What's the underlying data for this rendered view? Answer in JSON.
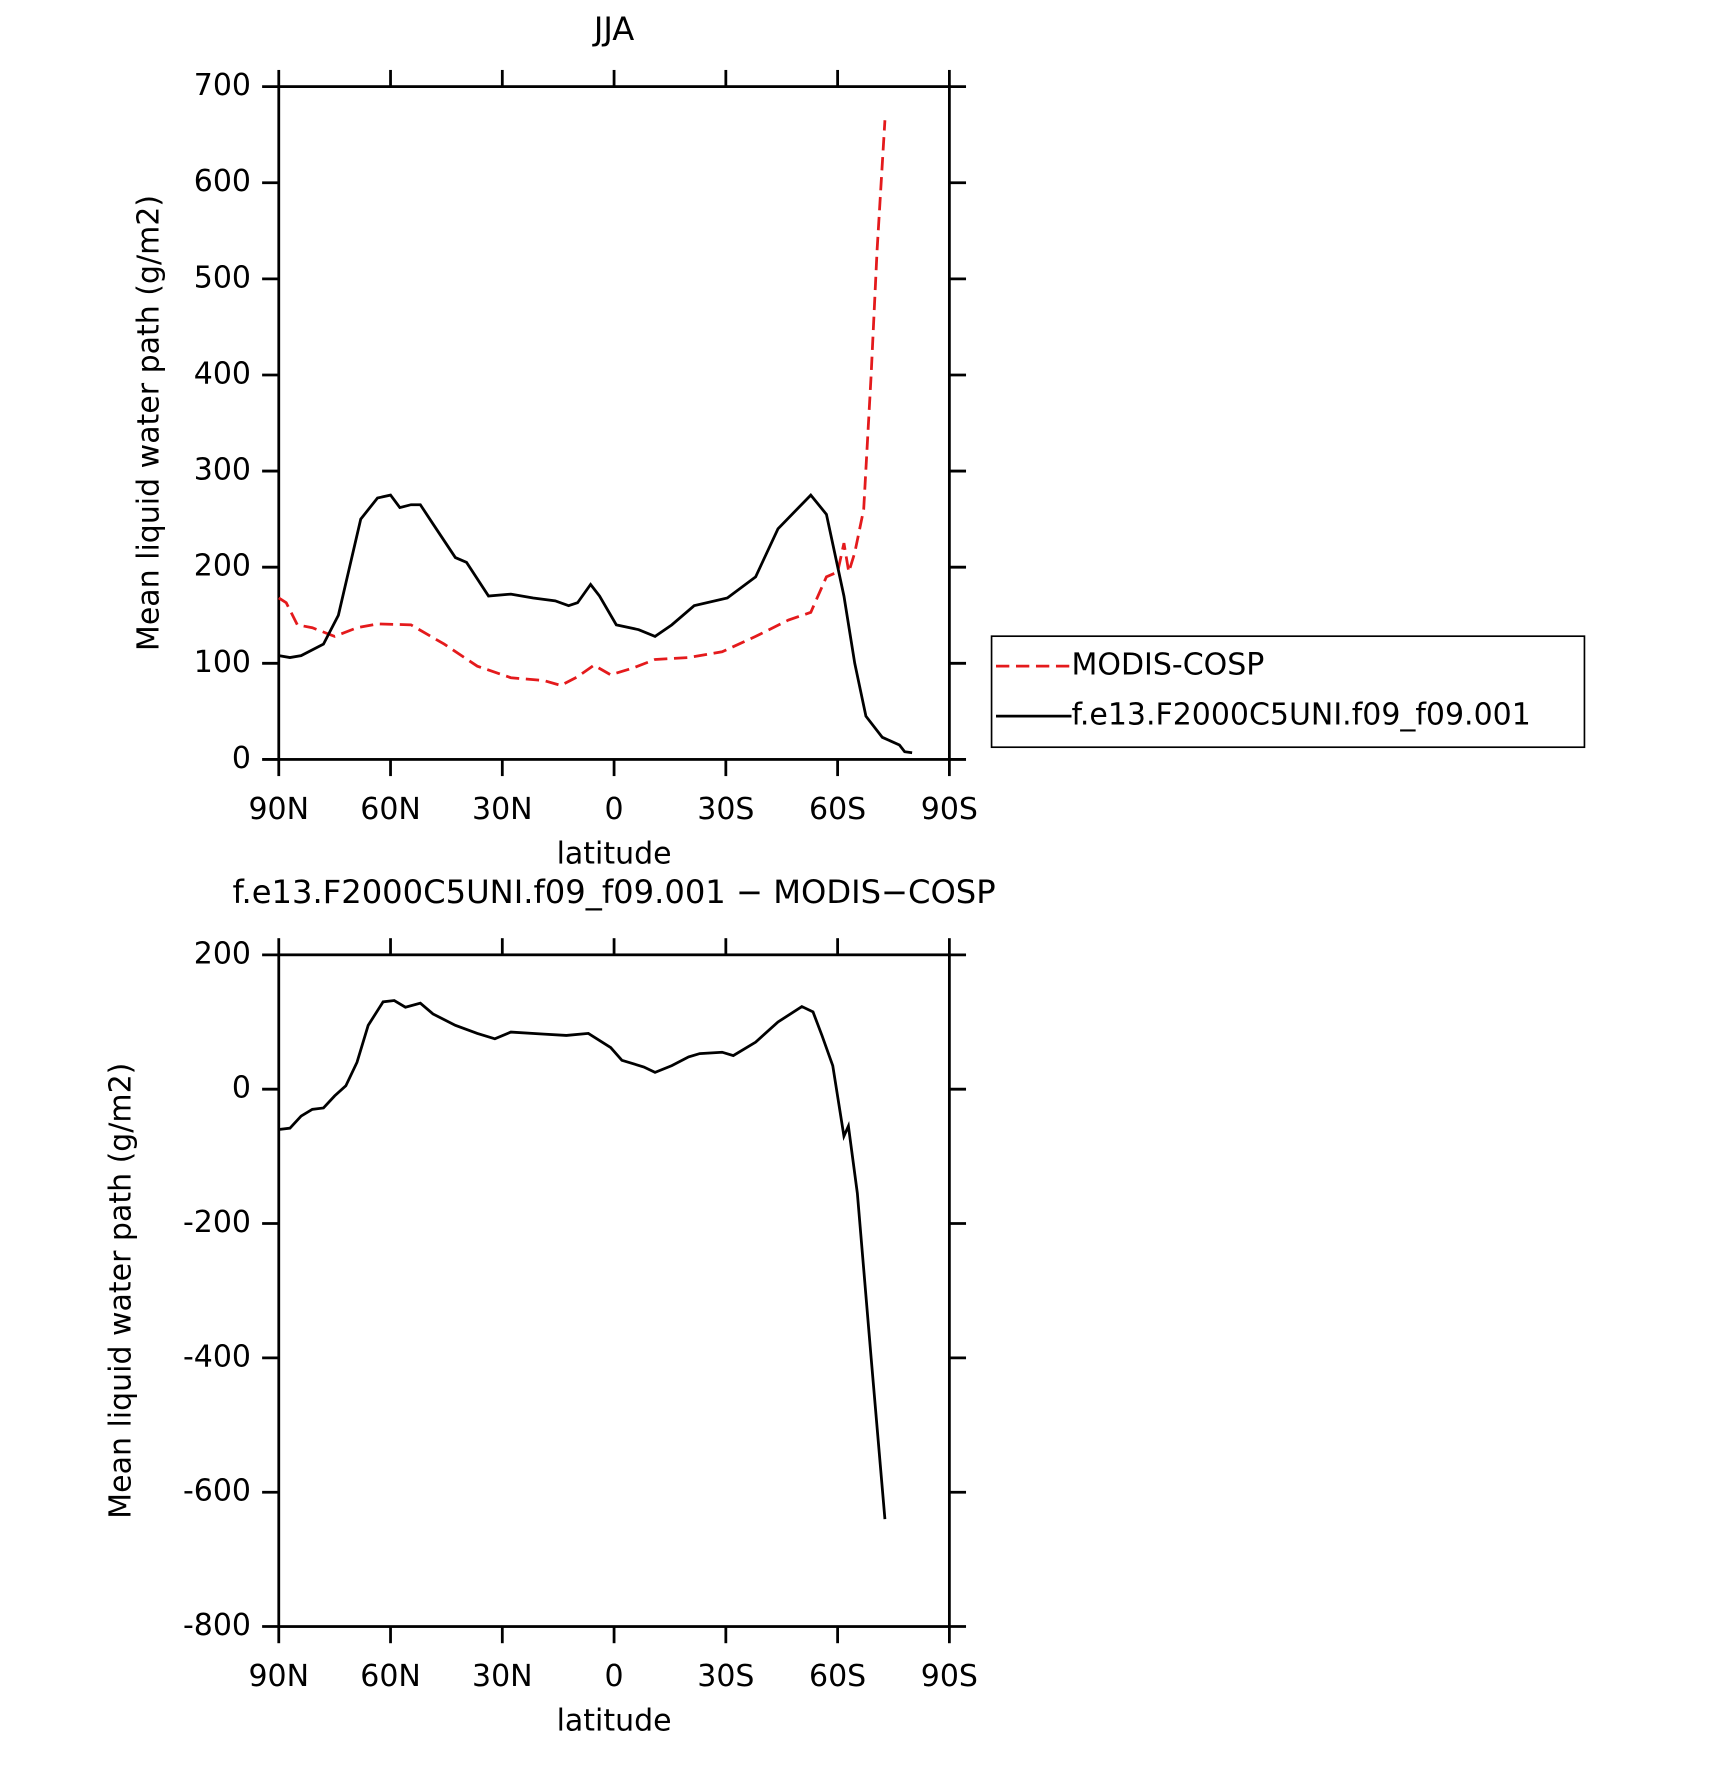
{
  "chart_data": [
    {
      "type": "line",
      "title": "JJA",
      "x_label": "latitude",
      "y_label": "Mean liquid water path (g/m2)",
      "xlim": [
        90,
        -90
      ],
      "xticks": [
        {
          "value": 90,
          "label": "90N"
        },
        {
          "value": 60,
          "label": "60N"
        },
        {
          "value": 30,
          "label": "30N"
        },
        0,
        {
          "value": -30,
          "label": "30S"
        },
        {
          "value": -60,
          "label": "60S"
        },
        {
          "value": -90,
          "label": "90S"
        }
      ],
      "ylim": [
        0,
        700
      ],
      "yticks": [
        0,
        100,
        200,
        300,
        400,
        500,
        600,
        700
      ],
      "legend": "right",
      "series": [
        {
          "name": "MODIS-COSP",
          "color": "#e41a1c",
          "dash": true,
          "x": [
            90,
            88,
            85,
            81,
            75,
            69,
            63.5,
            54.5,
            45.6,
            36.7,
            27.7,
            18.8,
            14.3,
            9.8,
            5.4,
            0.9,
            -5,
            -11,
            -20,
            -29,
            -38,
            -46.8,
            -52.8,
            -57,
            -60,
            -61.7,
            -63,
            -64.6,
            -67,
            -69,
            -70.6,
            -72.7
          ],
          "values": [
            168,
            163,
            140,
            137,
            128,
            137,
            141,
            140,
            120,
            97,
            85,
            82,
            77,
            86,
            98,
            88,
            95,
            104,
            106,
            112,
            128,
            145,
            153,
            190,
            195,
            225,
            195,
            215,
            260,
            400,
            530,
            665
          ]
        },
        {
          "name": "f.e13.F2000C5UNI.f09_f09.001",
          "color": "#000000",
          "dash": false,
          "x": [
            90,
            87,
            84,
            78,
            74,
            71,
            68,
            63.5,
            60,
            57.5,
            54.5,
            52,
            48.6,
            42.6,
            39.6,
            33.7,
            27.7,
            21.7,
            15.8,
            12.2,
            9.8,
            6.3,
            3.9,
            -0.6,
            -6.6,
            -11,
            -15.5,
            -21.5,
            -30.4,
            -38,
            -44,
            -52.8,
            -57,
            -61.7,
            -64.6,
            -67.6,
            -72,
            -76.6,
            -78,
            -80
          ],
          "values": [
            108,
            106,
            108,
            120,
            150,
            200,
            250,
            272,
            275,
            262,
            265,
            265,
            245,
            210,
            205,
            170,
            172,
            168,
            165,
            160,
            163,
            182,
            170,
            140,
            135,
            128,
            140,
            160,
            168,
            190,
            240,
            275,
            255,
            170,
            100,
            45,
            23,
            15,
            8,
            7
          ]
        }
      ]
    },
    {
      "type": "line",
      "title": "f.e13.F2000C5UNI.f09_f09.001 − MODIS−COSP",
      "x_label": "latitude",
      "y_label": "Mean liquid water path (g/m2)",
      "xlim": [
        90,
        -90
      ],
      "xticks": [
        {
          "value": 90,
          "label": "90N"
        },
        {
          "value": 60,
          "label": "60N"
        },
        {
          "value": 30,
          "label": "30N"
        },
        0,
        {
          "value": -30,
          "label": "30S"
        },
        {
          "value": -60,
          "label": "60S"
        },
        {
          "value": -90,
          "label": "90S"
        }
      ],
      "ylim": [
        -800,
        200
      ],
      "yticks": [
        -800,
        -600,
        -400,
        -200,
        0,
        200
      ],
      "series": [
        {
          "color": "#000000",
          "dash": false,
          "x": [
            90,
            87,
            84,
            81,
            78,
            75,
            72,
            69,
            66,
            62,
            59,
            56,
            52,
            48.6,
            42.6,
            36.7,
            32,
            27.7,
            18.8,
            12.8,
            6.9,
            0.9,
            -2.1,
            -8,
            -11,
            -15.5,
            -20,
            -23,
            -29,
            -32,
            -38,
            -44,
            -50.4,
            -53.4,
            -55.8,
            -58.7,
            -61.7,
            -62.9,
            -65.3,
            -69,
            -72.7
          ],
          "values": [
            -60,
            -58,
            -40,
            -30,
            -28,
            -10,
            5,
            40,
            95,
            130,
            132,
            122,
            128,
            112,
            95,
            83,
            75,
            85,
            82,
            80,
            83,
            62,
            43,
            33,
            25,
            35,
            48,
            53,
            55,
            50,
            70,
            100,
            123,
            115,
            80,
            35,
            -70,
            -55,
            -155,
            -400,
            -640
          ]
        }
      ]
    }
  ]
}
